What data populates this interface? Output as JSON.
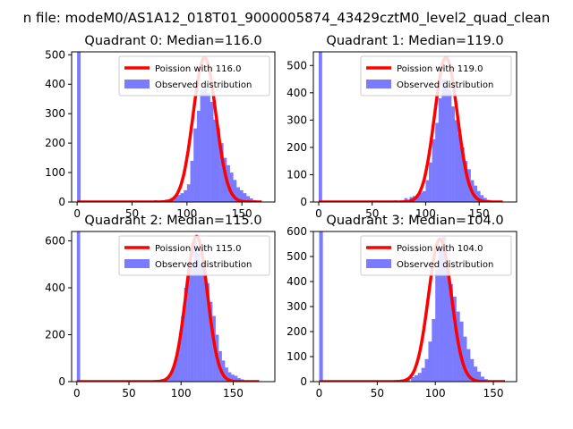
{
  "figure": {
    "suptitle": "n file: modeM0/AS1A12_018T01_9000005874_43429cztM0_level2_quad_clean"
  },
  "chart_data": [
    {
      "type": "bar",
      "title": "Quadrant 0: Median=116.0",
      "xlim": [
        -5,
        180
      ],
      "ylim": [
        0,
        510
      ],
      "xticks": [
        0,
        50,
        100,
        150
      ],
      "yticks": [
        0,
        100,
        200,
        300,
        400,
        500
      ],
      "legend": {
        "location": "upper right",
        "entries": [
          "Poission with 116.0",
          "Observed distribution"
        ]
      },
      "histogram": {
        "color": "#7b7bff",
        "bin_width": 3.2,
        "bins": [
          [
            0,
            510
          ],
          [
            3,
            0
          ],
          [
            70,
            6
          ],
          [
            80,
            8
          ],
          [
            85,
            14
          ],
          [
            88,
            18
          ],
          [
            91,
            24
          ],
          [
            94,
            30
          ],
          [
            97,
            40
          ],
          [
            100,
            60
          ],
          [
            103,
            140
          ],
          [
            106,
            250
          ],
          [
            109,
            310
          ],
          [
            112,
            380
          ],
          [
            115,
            385
          ],
          [
            118,
            370
          ],
          [
            121,
            340
          ],
          [
            124,
            280
          ],
          [
            127,
            250
          ],
          [
            130,
            200
          ],
          [
            133,
            150
          ],
          [
            136,
            125
          ],
          [
            139,
            100
          ],
          [
            142,
            75
          ],
          [
            145,
            50
          ],
          [
            148,
            40
          ],
          [
            151,
            30
          ],
          [
            154,
            20
          ],
          [
            157,
            12
          ],
          [
            160,
            6
          ],
          [
            163,
            4
          ]
        ]
      },
      "poisson": {
        "name": "Poission with 116.0",
        "color": "#ff0000",
        "mean": 116.0,
        "peak": 490,
        "sd": 10.4,
        "x_range": [
          0,
          168
        ]
      }
    },
    {
      "type": "bar",
      "title": "Quadrant 1: Median=119.0",
      "xlim": [
        -5,
        185
      ],
      "ylim": [
        0,
        550
      ],
      "xticks": [
        0,
        50,
        100,
        150
      ],
      "yticks": [
        0,
        100,
        200,
        300,
        400,
        500
      ],
      "legend": {
        "location": "upper right",
        "entries": [
          "Poission with 119.0",
          "Observed distribution"
        ]
      },
      "histogram": {
        "color": "#7b7bff",
        "bin_width": 3.2,
        "bins": [
          [
            0,
            550
          ],
          [
            3,
            0
          ],
          [
            70,
            6
          ],
          [
            80,
            14
          ],
          [
            85,
            18
          ],
          [
            88,
            22
          ],
          [
            91,
            28
          ],
          [
            94,
            34
          ],
          [
            97,
            40
          ],
          [
            100,
            80
          ],
          [
            103,
            145
          ],
          [
            106,
            230
          ],
          [
            109,
            290
          ],
          [
            112,
            380
          ],
          [
            115,
            450
          ],
          [
            118,
            430
          ],
          [
            121,
            410
          ],
          [
            124,
            350
          ],
          [
            127,
            300
          ],
          [
            130,
            250
          ],
          [
            133,
            200
          ],
          [
            136,
            150
          ],
          [
            139,
            120
          ],
          [
            142,
            80
          ],
          [
            145,
            60
          ],
          [
            148,
            40
          ],
          [
            151,
            25
          ],
          [
            154,
            15
          ],
          [
            157,
            8
          ],
          [
            160,
            4
          ]
        ]
      },
      "poisson": {
        "name": "Poission with 119.0",
        "color": "#ff0000",
        "mean": 119.0,
        "peak": 530,
        "sd": 10.6,
        "x_range": [
          0,
          172
        ]
      }
    },
    {
      "type": "bar",
      "title": "Quadrant 2: Median=115.0",
      "xlim": [
        -5,
        190
      ],
      "ylim": [
        0,
        640
      ],
      "xticks": [
        0,
        50,
        100,
        150
      ],
      "yticks": [
        0,
        200,
        400,
        600
      ],
      "legend": {
        "location": "upper right",
        "entries": [
          "Poission with 115.0",
          "Observed distribution"
        ]
      },
      "histogram": {
        "color": "#7b7bff",
        "bin_width": 3.2,
        "bins": [
          [
            0,
            640
          ],
          [
            3,
            0
          ],
          [
            75,
            6
          ],
          [
            80,
            10
          ],
          [
            85,
            18
          ],
          [
            88,
            30
          ],
          [
            91,
            60
          ],
          [
            94,
            100
          ],
          [
            97,
            170
          ],
          [
            100,
            280
          ],
          [
            103,
            400
          ],
          [
            106,
            470
          ],
          [
            109,
            510
          ],
          [
            112,
            600
          ],
          [
            115,
            550
          ],
          [
            118,
            500
          ],
          [
            121,
            480
          ],
          [
            124,
            420
          ],
          [
            127,
            340
          ],
          [
            130,
            280
          ],
          [
            133,
            200
          ],
          [
            136,
            130
          ],
          [
            139,
            90
          ],
          [
            142,
            60
          ],
          [
            145,
            40
          ],
          [
            148,
            30
          ],
          [
            151,
            25
          ],
          [
            154,
            15
          ],
          [
            157,
            10
          ],
          [
            160,
            5
          ]
        ]
      },
      "poisson": {
        "name": "Poission with 115.0",
        "color": "#ff0000",
        "mean": 115.0,
        "peak": 620,
        "sd": 10.3,
        "x_range": [
          0,
          175
        ]
      }
    },
    {
      "type": "bar",
      "title": "Quadrant 3: Median=104.0",
      "xlim": [
        -5,
        170
      ],
      "ylim": [
        0,
        600
      ],
      "xticks": [
        0,
        50,
        100,
        150
      ],
      "yticks": [
        0,
        100,
        200,
        300,
        400,
        500,
        600
      ],
      "legend": {
        "location": "upper right",
        "entries": [
          "Poission with 104.0",
          "Observed distribution"
        ]
      },
      "histogram": {
        "color": "#7b7bff",
        "bin_width": 3.2,
        "bins": [
          [
            0,
            600
          ],
          [
            3,
            0
          ],
          [
            70,
            8
          ],
          [
            75,
            12
          ],
          [
            79,
            18
          ],
          [
            82,
            25
          ],
          [
            85,
            35
          ],
          [
            88,
            55
          ],
          [
            91,
            90
          ],
          [
            94,
            160
          ],
          [
            97,
            250
          ],
          [
            100,
            450
          ],
          [
            103,
            530
          ],
          [
            106,
            580
          ],
          [
            109,
            450
          ],
          [
            112,
            390
          ],
          [
            115,
            340
          ],
          [
            118,
            280
          ],
          [
            121,
            240
          ],
          [
            124,
            180
          ],
          [
            127,
            130
          ],
          [
            130,
            90
          ],
          [
            133,
            60
          ],
          [
            136,
            40
          ],
          [
            139,
            20
          ],
          [
            142,
            10
          ]
        ]
      },
      "poisson": {
        "name": "Poission with 104.0",
        "color": "#ff0000",
        "mean": 104.0,
        "peak": 570,
        "sd": 9.8,
        "x_range": [
          0,
          160
        ]
      }
    }
  ]
}
